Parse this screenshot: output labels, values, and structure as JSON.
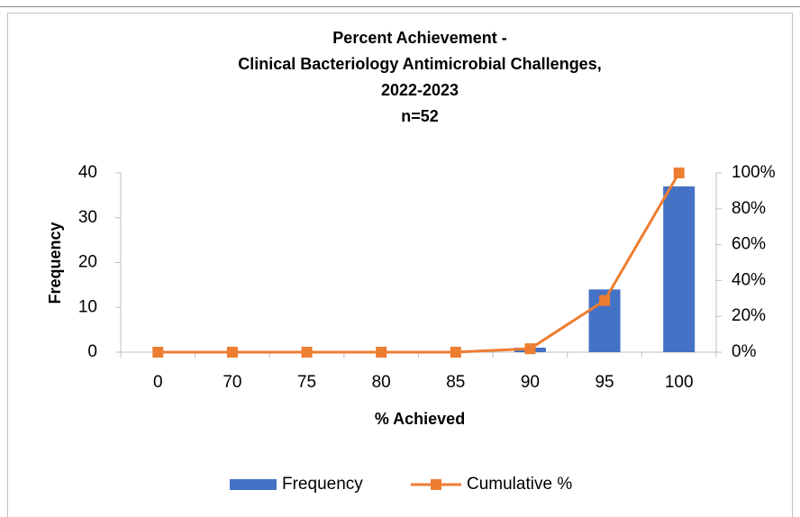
{
  "chart_data": {
    "type": "bar_line",
    "title": [
      "Percent Achievement -",
      "Clinical Bacteriology Antimicrobial Challenges,",
      "2022-2023",
      "n=52"
    ],
    "x_label": "% Achieved",
    "y_label": "Frequency",
    "categories": [
      "0",
      "70",
      "75",
      "80",
      "85",
      "90",
      "95",
      "100"
    ],
    "series": [
      {
        "name": "Frequency",
        "type": "bar",
        "color": "#4472c4",
        "values": [
          0,
          0,
          0,
          0,
          0,
          1,
          14,
          37
        ]
      },
      {
        "name": "Cumulative %",
        "type": "line",
        "axis": "y2",
        "color": "#ed7d31",
        "values": [
          0,
          0,
          0,
          0,
          0,
          1.92,
          28.85,
          100
        ]
      }
    ],
    "ylim": [
      0,
      40
    ],
    "yticks": [
      0,
      10,
      20,
      30,
      40
    ],
    "y2lim": [
      0,
      100
    ],
    "y2ticks": [
      {
        "value": 0,
        "label": "0%"
      },
      {
        "value": 20,
        "label": "20%"
      },
      {
        "value": 40,
        "label": "40%"
      },
      {
        "value": 60,
        "label": "60%"
      },
      {
        "value": 80,
        "label": "80%"
      },
      {
        "value": 100,
        "label": "100%"
      }
    ],
    "grid": false,
    "legend": "bottom"
  }
}
